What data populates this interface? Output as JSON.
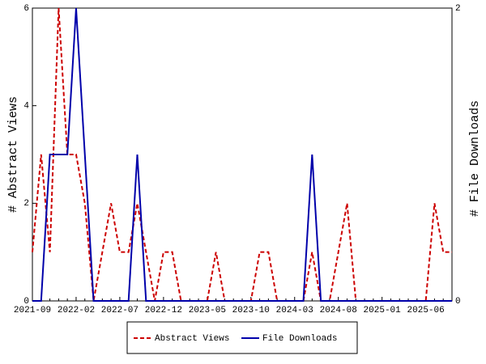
{
  "chart_data": {
    "type": "line",
    "categories": [
      "2021-09",
      null,
      null,
      null,
      null,
      "2022-02",
      null,
      null,
      null,
      null,
      "2022-07",
      null,
      null,
      null,
      null,
      "2022-12",
      null,
      null,
      null,
      null,
      "2023-05",
      null,
      null,
      null,
      null,
      "2023-10",
      null,
      null,
      null,
      null,
      "2024-03",
      null,
      null,
      null,
      null,
      "2024-08",
      null,
      null,
      null,
      null,
      "2025-01",
      null,
      null,
      null,
      null,
      "2025-06",
      null,
      null,
      null
    ],
    "ylabel": "# Abstract Views",
    "y2label": "# File Downloads",
    "ylim": [
      0,
      6
    ],
    "yticks": [
      0,
      2,
      4,
      6
    ],
    "y2lim": [
      0,
      2
    ],
    "y2ticks": [
      0,
      2
    ],
    "legend": "bottom",
    "series": [
      {
        "name": "Abstract Views",
        "color": "#cc0000",
        "dash": true,
        "values": [
          1,
          3,
          1,
          6,
          3,
          3,
          2,
          0,
          1,
          2,
          1,
          1,
          2,
          1,
          0,
          1,
          1,
          0,
          0,
          0,
          0,
          1,
          0,
          0,
          0,
          0,
          1,
          1,
          0,
          0,
          0,
          0,
          1,
          0,
          0,
          1,
          2,
          0,
          0,
          0,
          0,
          0,
          0,
          0,
          0,
          0,
          2,
          1,
          1
        ]
      },
      {
        "name": "File Downloads",
        "color": "#0000aa",
        "axis": "y2",
        "values": [
          0,
          0,
          1,
          1,
          1,
          2,
          1,
          0,
          0,
          0,
          0,
          0,
          1,
          0,
          0,
          0,
          0,
          0,
          0,
          0,
          0,
          0,
          0,
          0,
          0,
          0,
          0,
          0,
          0,
          0,
          0,
          0,
          1,
          0,
          0,
          0,
          0,
          0,
          0,
          0,
          0,
          0,
          0,
          0,
          0,
          0,
          0,
          0,
          0
        ]
      }
    ]
  }
}
